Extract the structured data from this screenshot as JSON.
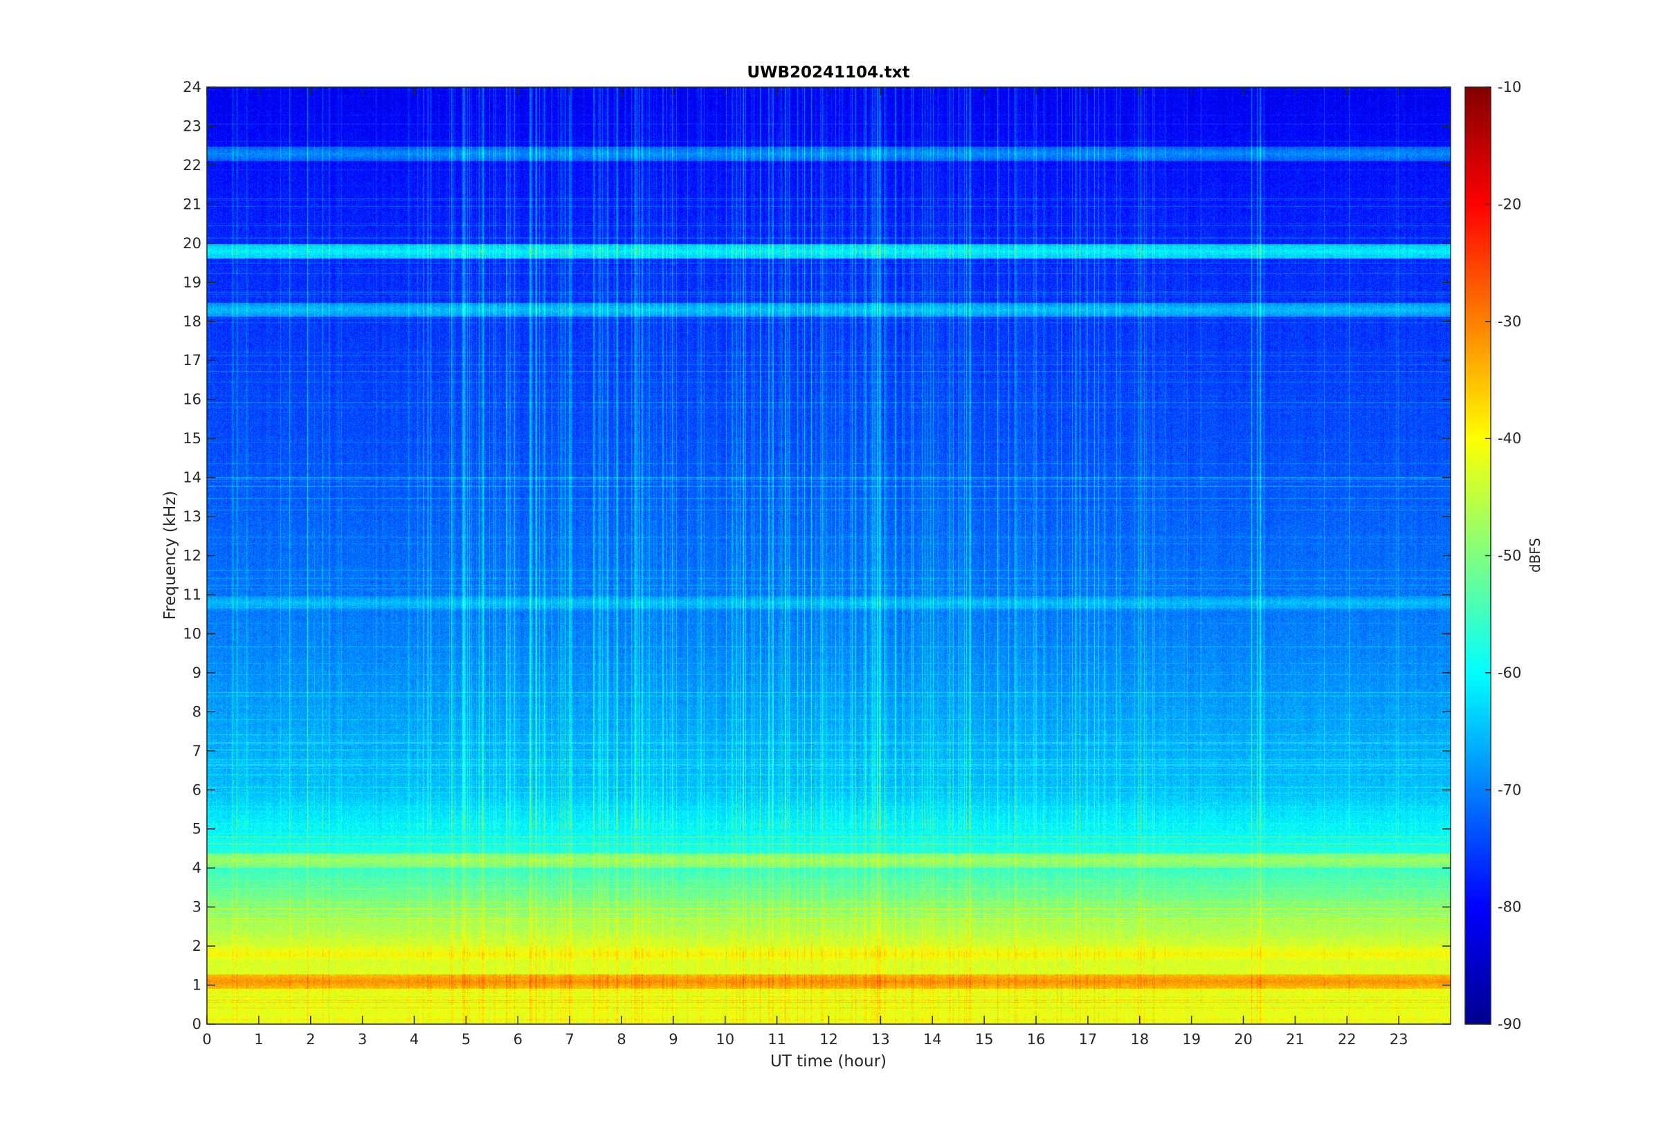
{
  "chart_data": {
    "type": "heatmap",
    "title": "UWB20241104.txt",
    "xlabel": "UT time (hour)",
    "ylabel": "Frequency (kHz)",
    "xlim": [
      0,
      24
    ],
    "ylim": [
      0,
      24
    ],
    "x_ticks": [
      "0",
      "1",
      "2",
      "3",
      "4",
      "5",
      "6",
      "7",
      "8",
      "9",
      "10",
      "11",
      "12",
      "13",
      "14",
      "15",
      "16",
      "17",
      "18",
      "19",
      "20",
      "21",
      "22",
      "23"
    ],
    "y_ticks": [
      "0",
      "1",
      "2",
      "3",
      "4",
      "5",
      "6",
      "7",
      "8",
      "9",
      "10",
      "11",
      "12",
      "13",
      "14",
      "15",
      "16",
      "17",
      "18",
      "19",
      "20",
      "21",
      "22",
      "23",
      "24"
    ],
    "colorbar": {
      "label": "dBFS",
      "range": [
        -90,
        -10
      ],
      "ticks": [
        "-90",
        "-80",
        "-70",
        "-60",
        "-50",
        "-40",
        "-30",
        "-20",
        "-10"
      ],
      "colormap": "jet"
    },
    "bands": [
      {
        "freq_khz": 19.8,
        "level_dbfs": -62
      },
      {
        "freq_khz": 18.3,
        "level_dbfs": -66
      },
      {
        "freq_khz": 22.3,
        "level_dbfs": -70
      },
      {
        "freq_khz": 10.8,
        "level_dbfs": -66
      },
      {
        "freq_khz": 4.2,
        "level_dbfs": -48
      },
      {
        "freq_khz": 1.1,
        "level_dbfs": -32
      },
      {
        "freq_khz": 1.8,
        "level_dbfs": -40
      }
    ],
    "level_profile": [
      {
        "freq_khz": 0,
        "level_dbfs": -42
      },
      {
        "freq_khz": 2,
        "level_dbfs": -44
      },
      {
        "freq_khz": 4,
        "level_dbfs": -56
      },
      {
        "freq_khz": 6,
        "level_dbfs": -66
      },
      {
        "freq_khz": 10,
        "level_dbfs": -71
      },
      {
        "freq_khz": 15,
        "level_dbfs": -75
      },
      {
        "freq_khz": 20,
        "level_dbfs": -78
      },
      {
        "freq_khz": 24,
        "level_dbfs": -82
      }
    ]
  }
}
